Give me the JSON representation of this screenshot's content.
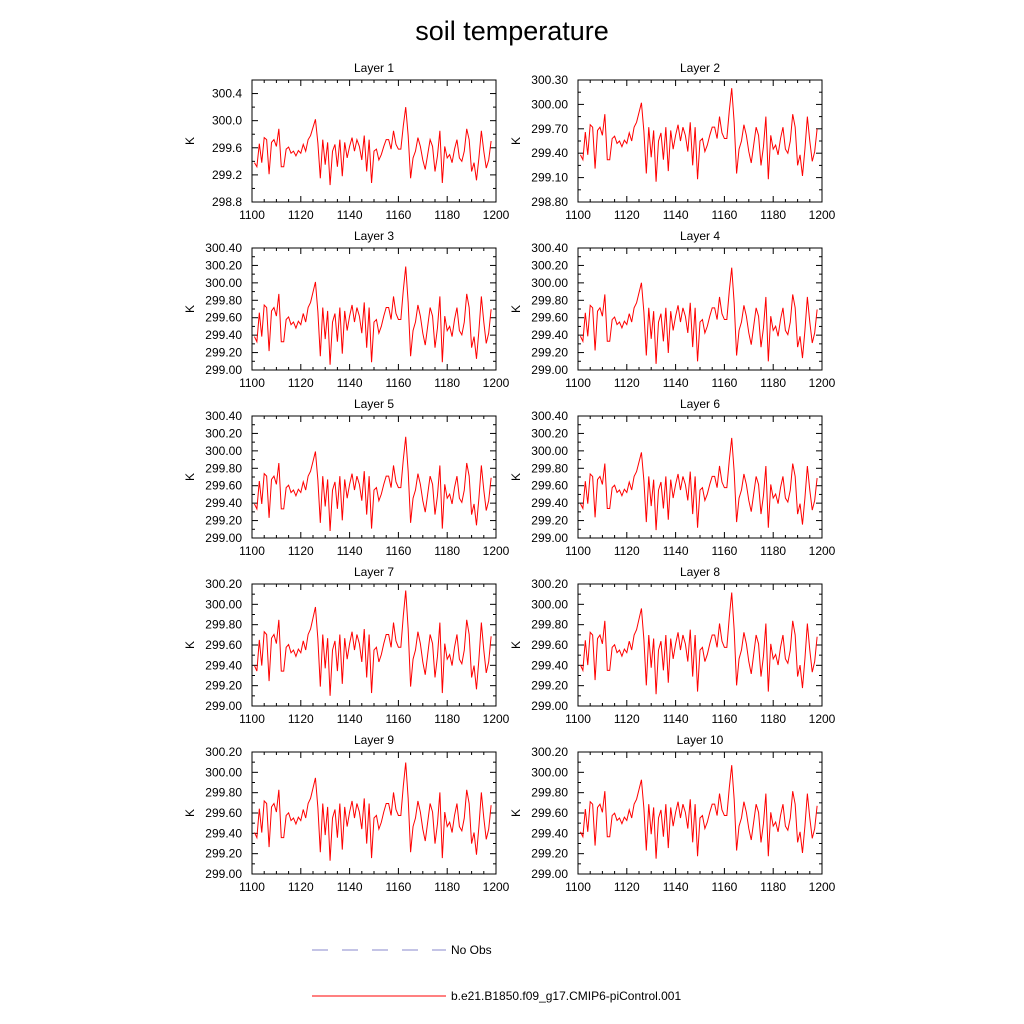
{
  "title": "soil temperature",
  "legend": {
    "obs_label": "No Obs",
    "model_label": "b.e21.B1850.f09_g17.CMIP6-piControl.001",
    "obs_color": "#8888cc",
    "model_color": "#ff0000"
  },
  "chart_data": {
    "type": "line",
    "xlabel": "",
    "ylabel": "K",
    "xlim": [
      1100,
      1200
    ],
    "x_ticks": [
      1100,
      1120,
      1140,
      1160,
      1180,
      1200
    ],
    "x_tick_labels": [
      "1100",
      "1120",
      "1140",
      "1160",
      "1180",
      "1200"
    ],
    "x_start": 1101,
    "x_end": 1198,
    "base_series": [
      299.38,
      299.32,
      299.66,
      299.38,
      299.75,
      299.72,
      299.21,
      299.68,
      299.72,
      299.62,
      299.88,
      299.32,
      299.32,
      299.58,
      299.61,
      299.52,
      299.55,
      299.48,
      299.56,
      299.52,
      299.65,
      299.55,
      299.72,
      299.78,
      299.9,
      300.02,
      299.67,
      299.15,
      299.72,
      299.35,
      299.68,
      299.05,
      299.55,
      299.65,
      299.32,
      299.72,
      299.18,
      299.68,
      299.45,
      299.62,
      299.75,
      299.55,
      299.72,
      299.62,
      299.42,
      299.78,
      299.25,
      299.72,
      299.08,
      299.55,
      299.58,
      299.42,
      299.5,
      299.62,
      299.72,
      299.72,
      299.58,
      299.85,
      299.65,
      299.58,
      299.58,
      299.92,
      300.2,
      299.78,
      299.15,
      299.45,
      299.55,
      299.75,
      299.62,
      299.42,
      299.28,
      299.5,
      299.72,
      299.62,
      299.25,
      299.48,
      299.85,
      299.08,
      299.62,
      299.45,
      299.5,
      299.38,
      299.58,
      299.72,
      299.45,
      299.4,
      299.55,
      299.88,
      299.72,
      299.25,
      299.38,
      299.12,
      299.45,
      299.85,
      299.55,
      299.3,
      299.42,
      299.7
    ],
    "panels": [
      {
        "title": "Layer 1",
        "ylim": [
          298.8,
          300.6
        ],
        "y_ticks": [
          298.8,
          299.2,
          299.6,
          300.0,
          300.4
        ],
        "y_tick_labels": [
          "298.8",
          "299.2",
          "299.6",
          "300.0",
          "300.4"
        ],
        "scale": 1.0,
        "offset": 0.0
      },
      {
        "title": "Layer 2",
        "ylim": [
          298.8,
          300.3
        ],
        "y_ticks": [
          298.8,
          299.1,
          299.4,
          299.7,
          300.0,
          300.3
        ],
        "y_tick_labels": [
          "298.80",
          "299.10",
          "299.40",
          "299.70",
          "300.00",
          "300.30"
        ],
        "scale": 1.0,
        "offset": 0.0
      },
      {
        "title": "Layer 3",
        "ylim": [
          299.0,
          300.4
        ],
        "y_ticks": [
          299.0,
          299.2,
          299.4,
          299.6,
          299.8,
          300.0,
          300.2,
          300.4
        ],
        "y_tick_labels": [
          "299.00",
          "299.20",
          "299.40",
          "299.60",
          "299.80",
          "300.00",
          "300.20",
          "300.40"
        ],
        "scale": 0.98,
        "offset": 0.0
      },
      {
        "title": "Layer 4",
        "ylim": [
          299.0,
          300.4
        ],
        "y_ticks": [
          299.0,
          299.2,
          299.4,
          299.6,
          299.8,
          300.0,
          300.2,
          300.4
        ],
        "y_tick_labels": [
          "299.00",
          "299.20",
          "299.40",
          "299.60",
          "299.80",
          "300.00",
          "300.20",
          "300.40"
        ],
        "scale": 0.96,
        "offset": 0.0
      },
      {
        "title": "Layer 5",
        "ylim": [
          299.0,
          300.4
        ],
        "y_ticks": [
          299.0,
          299.2,
          299.4,
          299.6,
          299.8,
          300.0,
          300.2,
          300.4
        ],
        "y_tick_labels": [
          "299.00",
          "299.20",
          "299.40",
          "299.60",
          "299.80",
          "300.00",
          "300.20",
          "300.40"
        ],
        "scale": 0.94,
        "offset": 0.0
      },
      {
        "title": "Layer 6",
        "ylim": [
          299.0,
          300.4
        ],
        "y_ticks": [
          299.0,
          299.2,
          299.4,
          299.6,
          299.8,
          300.0,
          300.2,
          300.4
        ],
        "y_tick_labels": [
          "299.00",
          "299.20",
          "299.40",
          "299.60",
          "299.80",
          "300.00",
          "300.20",
          "300.40"
        ],
        "scale": 0.92,
        "offset": 0.0
      },
      {
        "title": "Layer 7",
        "ylim": [
          299.0,
          300.2
        ],
        "y_ticks": [
          299.0,
          299.2,
          299.4,
          299.6,
          299.8,
          300.0,
          300.2
        ],
        "y_tick_labels": [
          "299.00",
          "299.20",
          "299.40",
          "299.60",
          "299.80",
          "300.00",
          "300.20"
        ],
        "scale": 0.9,
        "offset": 0.0
      },
      {
        "title": "Layer 8",
        "ylim": [
          299.0,
          300.2
        ],
        "y_ticks": [
          299.0,
          299.2,
          299.4,
          299.6,
          299.8,
          300.0,
          300.2
        ],
        "y_tick_labels": [
          "299.00",
          "299.20",
          "299.40",
          "299.60",
          "299.80",
          "300.00",
          "300.20"
        ],
        "scale": 0.87,
        "offset": 0.0
      },
      {
        "title": "Layer 9",
        "ylim": [
          299.0,
          300.2
        ],
        "y_ticks": [
          299.0,
          299.2,
          299.4,
          299.6,
          299.8,
          300.0,
          300.2
        ],
        "y_tick_labels": [
          "299.00",
          "299.20",
          "299.40",
          "299.60",
          "299.80",
          "300.00",
          "300.20"
        ],
        "scale": 0.84,
        "offset": 0.0
      },
      {
        "title": "Layer 10",
        "ylim": [
          299.0,
          300.2
        ],
        "y_ticks": [
          299.0,
          299.2,
          299.4,
          299.6,
          299.8,
          300.0,
          300.2
        ],
        "y_tick_labels": [
          "299.00",
          "299.20",
          "299.40",
          "299.60",
          "299.80",
          "300.00",
          "300.20"
        ],
        "scale": 0.8,
        "offset": 0.0
      }
    ]
  }
}
